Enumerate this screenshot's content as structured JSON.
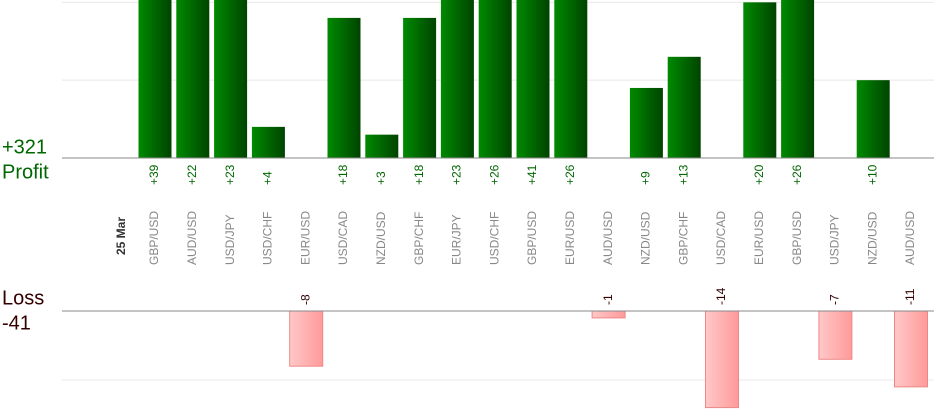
{
  "chart_data": {
    "type": "bar",
    "date_label": "25 Mar",
    "categories": [
      "GBP/USD",
      "AUD/USD",
      "USD/JPY",
      "USD/CHF",
      "EUR/USD",
      "USD/CAD",
      "NZD/USD",
      "GBP/CHF",
      "EUR/JPY",
      "USD/CHF",
      "GBP/USD",
      "EUR/USD",
      "AUD/USD",
      "NZD/USD",
      "GBP/CHF",
      "USD/CAD",
      "EUR/USD",
      "GBP/USD",
      "USD/JPY",
      "NZD/USD",
      "AUD/USD"
    ],
    "ylim": [
      0,
      20.3
    ],
    "yticks": [
      10,
      20
    ],
    "y2lim": [
      -15.8,
      0
    ],
    "y2ticks": [
      -10
    ],
    "grid": true,
    "series": [
      {
        "name": "Profit",
        "color": "#006600",
        "total": 321,
        "total_label": "+321",
        "values": [
          39,
          22,
          23,
          4,
          null,
          18,
          3,
          18,
          23,
          26,
          41,
          26,
          null,
          9,
          13,
          null,
          20,
          26,
          null,
          10,
          null
        ],
        "value_labels": [
          "+39",
          "+22",
          "+23",
          "+4",
          null,
          "+18",
          "+3",
          "+18",
          "+23",
          "+26",
          "+41",
          "+26",
          null,
          "+9",
          "+13",
          null,
          "+20",
          "+26",
          null,
          "+10",
          null
        ]
      },
      {
        "name": "Loss",
        "color": "#ffb0b0",
        "axis": "y2",
        "total": -41,
        "values": [
          null,
          null,
          null,
          null,
          -8,
          null,
          null,
          null,
          null,
          null,
          null,
          null,
          -1,
          null,
          null,
          -14,
          null,
          null,
          -7,
          null,
          -11
        ]
      }
    ]
  }
}
